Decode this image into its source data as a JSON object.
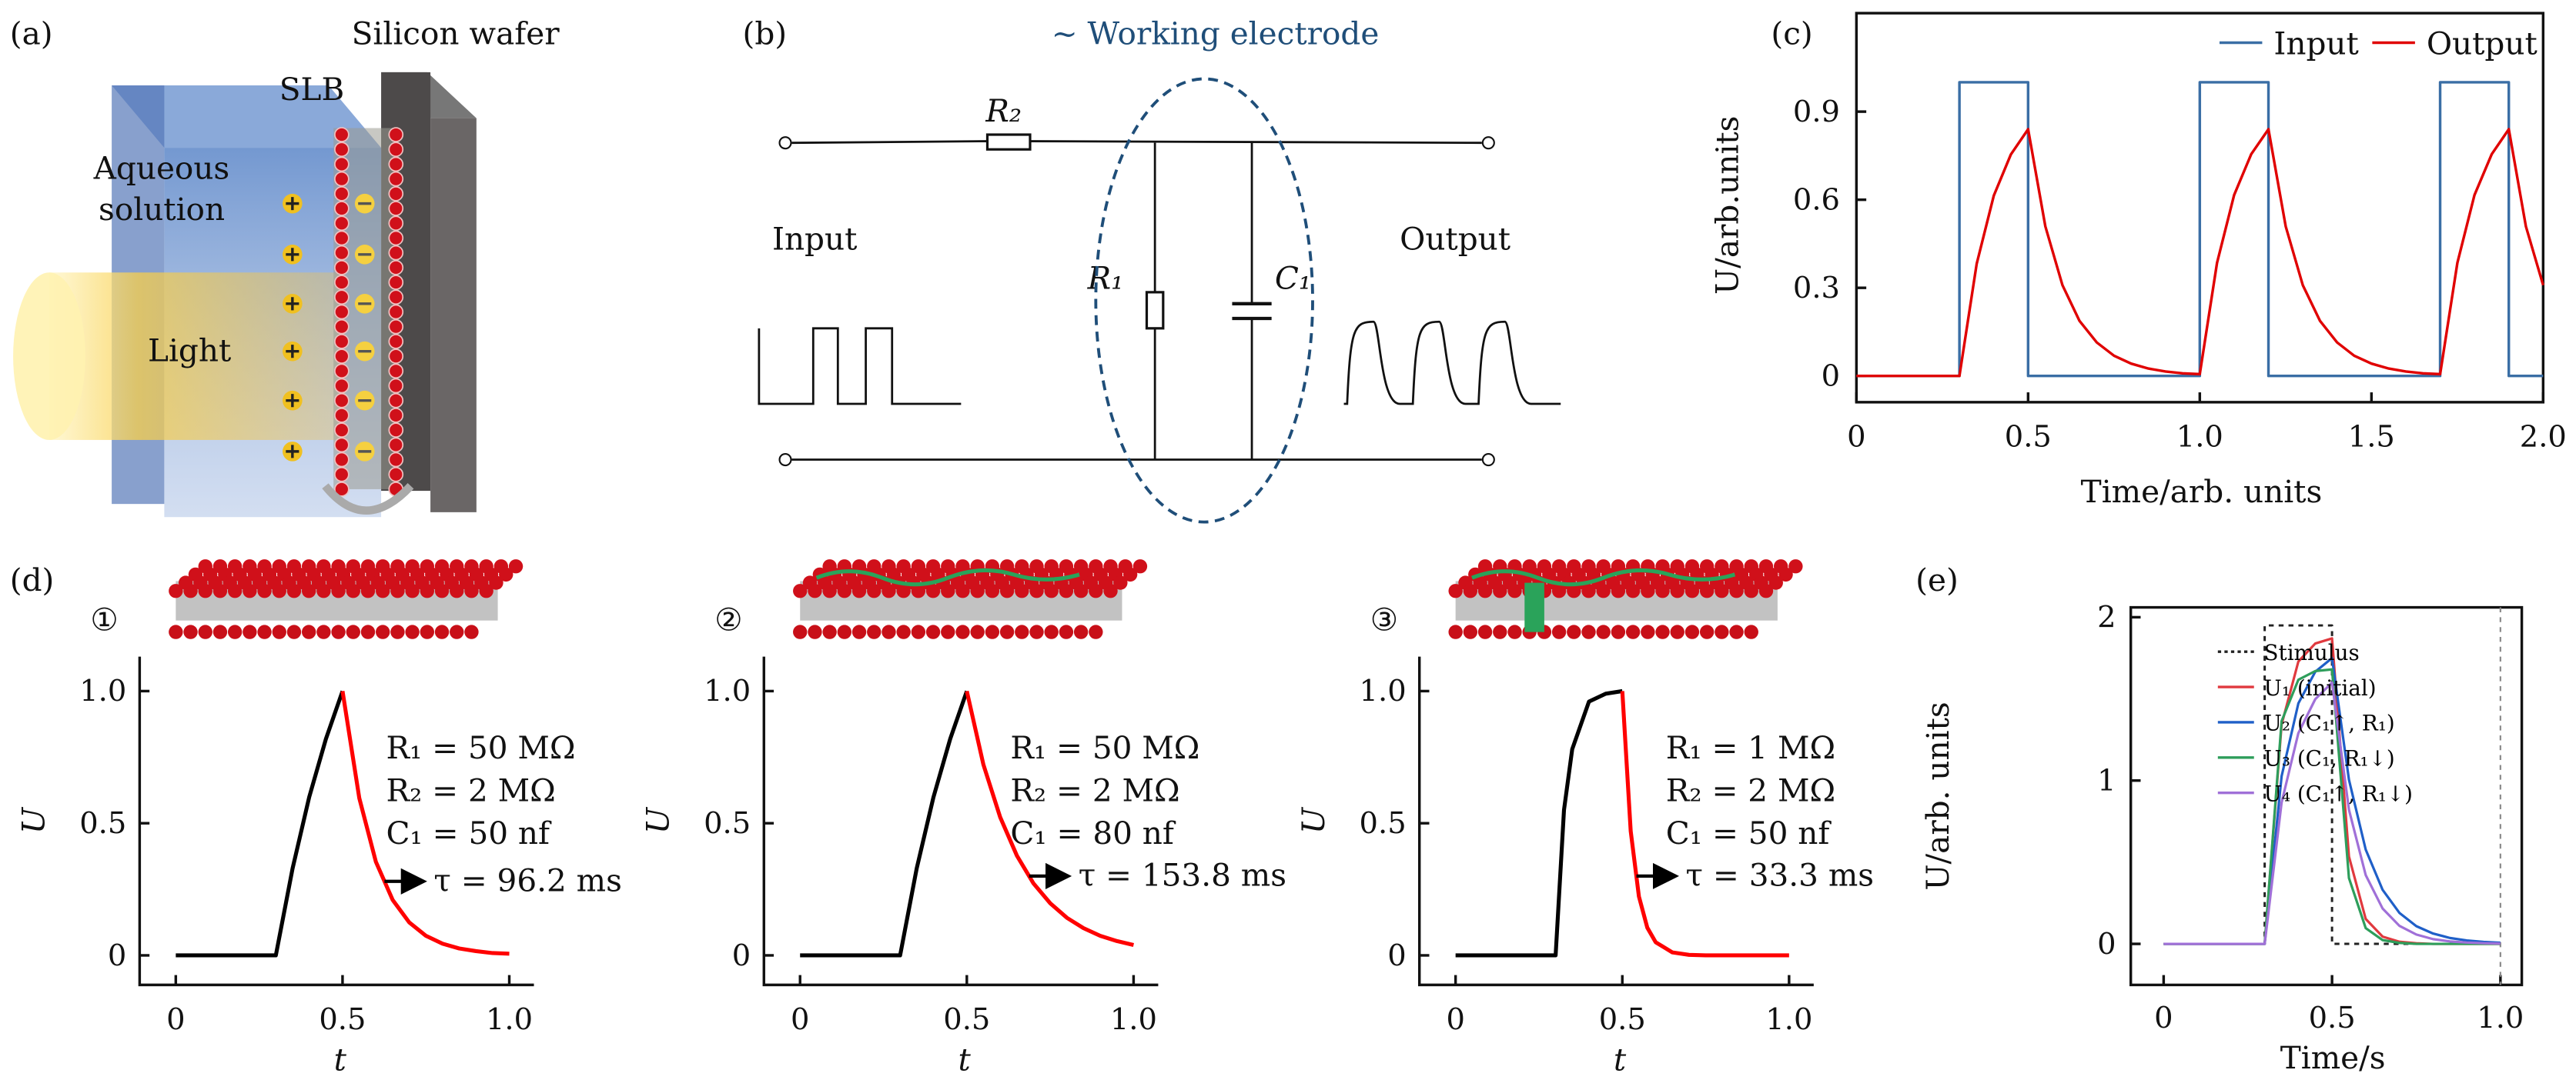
{
  "panel_a": {
    "label": "(a)",
    "silicon_wafer": "Silicon wafer",
    "slb": "SLB",
    "aqueous_line1": "Aqueous",
    "aqueous_line2": "solution",
    "light": "Light",
    "colors": {
      "solution": "#5b86c8",
      "light": "#f7c843",
      "wafer": "#5a5656",
      "lipid_head": "#d0101a"
    }
  },
  "panel_b": {
    "label": "(b)",
    "working_electrode": "~ Working electrode",
    "r2": "R₂",
    "r1": "R₁",
    "c1": "C₁",
    "input": "Input",
    "output": "Output",
    "colors": {
      "ellipse": "#1f4e79"
    }
  },
  "panel_d": {
    "label": "(d)",
    "markers": [
      "①",
      "②",
      "③"
    ]
  },
  "panel_e": {
    "label": "(e)"
  },
  "panel_c": {
    "label": "(c)"
  },
  "chart_data": [
    {
      "id": "c",
      "type": "line",
      "xlabel": "Time/arb. units",
      "ylabel": "U/arb.units",
      "xlim": [
        0,
        2.0
      ],
      "ylim": [
        -0.09,
        1.23
      ],
      "xticks": [
        "0",
        "0.5",
        "1.0",
        "1.5",
        "2.0"
      ],
      "xtick_values": [
        0,
        0.5,
        1.0,
        1.5,
        2.0
      ],
      "yticks": [
        "0",
        "0.3",
        "0.6",
        "0.9"
      ],
      "ytick_values": [
        0,
        0.3,
        0.6,
        0.9
      ],
      "legend": "top-right",
      "series": [
        {
          "name": "Input",
          "color": "#3a6ea5",
          "step": true,
          "x": [
            0,
            0.3,
            0.3,
            0.5,
            0.5,
            1.0,
            1.0,
            1.2,
            1.2,
            1.7,
            1.7,
            1.9,
            1.9,
            2.0
          ],
          "y": [
            0,
            0,
            1,
            1,
            0,
            0,
            1,
            1,
            0,
            0,
            1,
            1,
            0,
            0
          ]
        },
        {
          "name": "Output",
          "color": "#e00000",
          "x": [
            0,
            0.05,
            0.1,
            0.15,
            0.2,
            0.25,
            0.3,
            0.35,
            0.4,
            0.45,
            0.5,
            0.55,
            0.6,
            0.65,
            0.7,
            0.75,
            0.8,
            0.85,
            0.9,
            0.95,
            1.0,
            1.05,
            1.1,
            1.15,
            1.2,
            1.25,
            1.3,
            1.35,
            1.4,
            1.45,
            1.5,
            1.55,
            1.6,
            1.65,
            1.7,
            1.75,
            1.8,
            1.85,
            1.9,
            1.95,
            2.0
          ],
          "y": [
            0,
            0,
            0,
            0,
            0,
            0,
            0,
            0.382,
            0.614,
            0.754,
            0.84,
            0.509,
            0.309,
            0.187,
            0.114,
            0.069,
            0.042,
            0.025,
            0.015,
            0.009,
            0.006,
            0.385,
            0.616,
            0.755,
            0.84,
            0.509,
            0.309,
            0.187,
            0.114,
            0.069,
            0.042,
            0.025,
            0.015,
            0.009,
            0.006,
            0.385,
            0.616,
            0.755,
            0.84,
            0.509,
            0.309
          ]
        }
      ]
    },
    {
      "id": "d1",
      "type": "line",
      "xlabel": "t",
      "ylabel": "U",
      "xlim": [
        0,
        1.0
      ],
      "ylim": [
        -0.1,
        1.1
      ],
      "xticks": [
        "0",
        "0.5",
        "1.0"
      ],
      "xtick_values": [
        0,
        0.5,
        1.0
      ],
      "yticks": [
        "0",
        "0.5",
        "1.0"
      ],
      "ytick_values": [
        0,
        0.5,
        1.0
      ],
      "params": [
        "R₁ = 50 MΩ",
        "R₂ = 2 MΩ",
        "C₁ = 50 nf"
      ],
      "tau_label": "τ = 96.2 ms",
      "tau_arrow_y": 0.28,
      "rise": {
        "color": "#000000",
        "x": [
          0,
          0.05,
          0.1,
          0.15,
          0.2,
          0.25,
          0.3,
          0.35,
          0.4,
          0.45,
          0.5
        ],
        "y": [
          0,
          0,
          0,
          0,
          0,
          0,
          0,
          0.329,
          0.599,
          0.819,
          1.0
        ]
      },
      "decay": {
        "color": "#ff0000",
        "x": [
          0.5,
          0.55,
          0.6,
          0.65,
          0.7,
          0.75,
          0.8,
          0.85,
          0.9,
          0.95,
          1.0
        ],
        "y": [
          1.0,
          0.595,
          0.354,
          0.21,
          0.125,
          0.074,
          0.044,
          0.026,
          0.016,
          0.009,
          0.006
        ]
      }
    },
    {
      "id": "d2",
      "type": "line",
      "xlabel": "t",
      "ylabel": "U",
      "xlim": [
        0,
        1.0
      ],
      "ylim": [
        -0.1,
        1.1
      ],
      "xticks": [
        "0",
        "0.5",
        "1.0"
      ],
      "xtick_values": [
        0,
        0.5,
        1.0
      ],
      "yticks": [
        "0",
        "0.5",
        "1.0"
      ],
      "ytick_values": [
        0,
        0.5,
        1.0
      ],
      "params": [
        "R₁ = 50 MΩ",
        "R₂ = 2 MΩ",
        "C₁ = 80 nf"
      ],
      "tau_label": "τ = 153.8 ms",
      "tau_arrow_y": 0.3,
      "rise": {
        "color": "#000000",
        "x": [
          0,
          0.05,
          0.1,
          0.15,
          0.2,
          0.25,
          0.3,
          0.35,
          0.4,
          0.45,
          0.5
        ],
        "y": [
          0,
          0,
          0,
          0,
          0,
          0,
          0,
          0.329,
          0.599,
          0.819,
          1.0
        ]
      },
      "decay": {
        "color": "#ff0000",
        "x": [
          0.5,
          0.55,
          0.6,
          0.65,
          0.7,
          0.75,
          0.8,
          0.85,
          0.9,
          0.95,
          1.0
        ],
        "y": [
          1.0,
          0.722,
          0.523,
          0.377,
          0.272,
          0.197,
          0.142,
          0.103,
          0.074,
          0.054,
          0.039
        ]
      }
    },
    {
      "id": "d3",
      "type": "line",
      "xlabel": "t",
      "ylabel": "U",
      "xlim": [
        0,
        1.0
      ],
      "ylim": [
        -0.1,
        1.1
      ],
      "xticks": [
        "0",
        "0.5",
        "1.0"
      ],
      "xtick_values": [
        0,
        0.5,
        1.0
      ],
      "yticks": [
        "0",
        "0.5",
        "1.0"
      ],
      "ytick_values": [
        0,
        0.5,
        1.0
      ],
      "params": [
        "R₁ = 1 MΩ",
        "R₂ = 2 MΩ",
        "C₁ = 50 nf"
      ],
      "tau_label": "τ = 33.3 ms",
      "tau_arrow_y": 0.3,
      "rise": {
        "color": "#000000",
        "x": [
          0,
          0.05,
          0.1,
          0.15,
          0.2,
          0.25,
          0.3,
          0.325,
          0.35,
          0.4,
          0.45,
          0.5
        ],
        "y": [
          0,
          0,
          0,
          0,
          0,
          0,
          0,
          0.55,
          0.78,
          0.96,
          0.99,
          1.0
        ]
      },
      "decay": {
        "color": "#ff0000",
        "x": [
          0.5,
          0.525,
          0.55,
          0.575,
          0.6,
          0.65,
          0.7,
          0.75,
          0.8,
          0.85,
          0.9,
          0.95,
          1.0
        ],
        "y": [
          1.0,
          0.47,
          0.223,
          0.105,
          0.05,
          0.011,
          0.002,
          0,
          0,
          0,
          0,
          0,
          0
        ]
      }
    },
    {
      "id": "e",
      "type": "line",
      "xlabel": "Time/s",
      "ylabel": "U/arb. units",
      "xlim": [
        0,
        1.1
      ],
      "ylim": [
        -0.25,
        2.0
      ],
      "xticks": [
        "0",
        "0.5",
        "1.0"
      ],
      "xtick_values": [
        0,
        0.5,
        1.0
      ],
      "yticks": [
        "0",
        "1",
        "2"
      ],
      "ytick_values": [
        0,
        1,
        2
      ],
      "legend": "top-right",
      "series": [
        {
          "name": "Stimulus",
          "color": "#222222",
          "dashed": true,
          "x": [
            0,
            0.3,
            0.3,
            0.5,
            0.5,
            1.0
          ],
          "y": [
            0,
            0,
            1.95,
            1.95,
            0,
            0
          ]
        },
        {
          "name": "U₁ (initial)",
          "color": "#e0393e",
          "x": [
            0,
            0.3,
            0.35,
            0.4,
            0.45,
            0.5,
            0.55,
            0.6,
            0.65,
            0.7,
            0.75,
            0.8,
            1.0
          ],
          "y": [
            0,
            0,
            1.343,
            1.729,
            1.839,
            1.87,
            0.535,
            0.153,
            0.044,
            0.013,
            0.004,
            0,
            0
          ]
        },
        {
          "name": "U₂ (C₁↑, R₁)",
          "color": "#1f5fc8",
          "x": [
            0,
            0.3,
            0.35,
            0.4,
            0.45,
            0.5,
            0.55,
            0.6,
            0.65,
            0.7,
            0.75,
            0.8,
            0.85,
            0.9,
            0.95,
            1.0
          ],
          "y": [
            0,
            0,
            1.026,
            1.472,
            1.666,
            1.75,
            1.005,
            0.577,
            0.331,
            0.19,
            0.109,
            0.063,
            0.036,
            0.021,
            0.012,
            0.007
          ]
        },
        {
          "name": "U₃ (C₁, R₁↓)",
          "color": "#2e9e5b",
          "x": [
            0,
            0.3,
            0.35,
            0.4,
            0.45,
            0.5,
            0.55,
            0.6,
            0.65,
            0.7,
            0.75,
            1.0
          ],
          "y": [
            0,
            0,
            1.364,
            1.617,
            1.67,
            1.68,
            0.403,
            0.096,
            0.023,
            0.006,
            0,
            0
          ]
        },
        {
          "name": "U₄ (C₁↑, R₁↓)",
          "color": "#a070d8",
          "x": [
            0,
            0.3,
            0.35,
            0.4,
            0.45,
            0.5,
            0.55,
            0.6,
            0.65,
            0.7,
            0.75,
            0.8,
            0.85,
            0.9,
            0.95,
            1.0
          ],
          "y": [
            0,
            0,
            0.865,
            1.29,
            1.498,
            1.6,
            0.821,
            0.421,
            0.216,
            0.111,
            0.057,
            0.029,
            0.015,
            0.008,
            0.004,
            0.002
          ]
        }
      ]
    }
  ]
}
